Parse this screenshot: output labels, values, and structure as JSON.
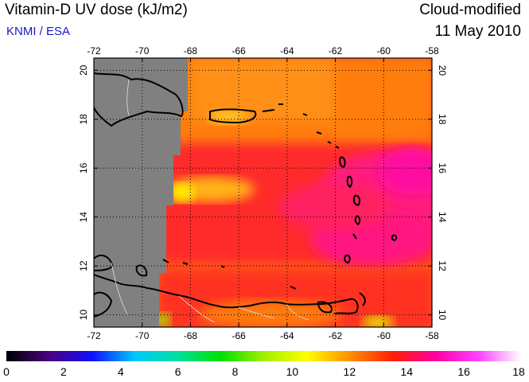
{
  "header": {
    "title": "Vitamin-D UV dose (kJ/m2)",
    "source": "KNMI / ESA",
    "product": "Cloud-modified",
    "date": "11 May 2010"
  },
  "map": {
    "lon_ticks": [
      "-72",
      "-70",
      "-68",
      "-66",
      "-64",
      "-62",
      "-60",
      "-58"
    ],
    "lat_ticks": [
      "10",
      "12",
      "14",
      "16",
      "18",
      "20"
    ],
    "lon_range": [
      -72,
      -58
    ],
    "lat_range": [
      9.5,
      20.5
    ],
    "no_data_color": "#808080"
  },
  "colorbar": {
    "labels": [
      "0",
      "2",
      "4",
      "6",
      "8",
      "10",
      "12",
      "14",
      "16",
      "18"
    ],
    "range": [
      0,
      18
    ],
    "stops": [
      "#000000",
      "#4a0080",
      "#1010ff",
      "#00c8ff",
      "#00e0a0",
      "#00e000",
      "#a0f000",
      "#ffff00",
      "#ff9000",
      "#ff2000",
      "#ff00a0",
      "#ff40ff",
      "#ffffff"
    ]
  }
}
